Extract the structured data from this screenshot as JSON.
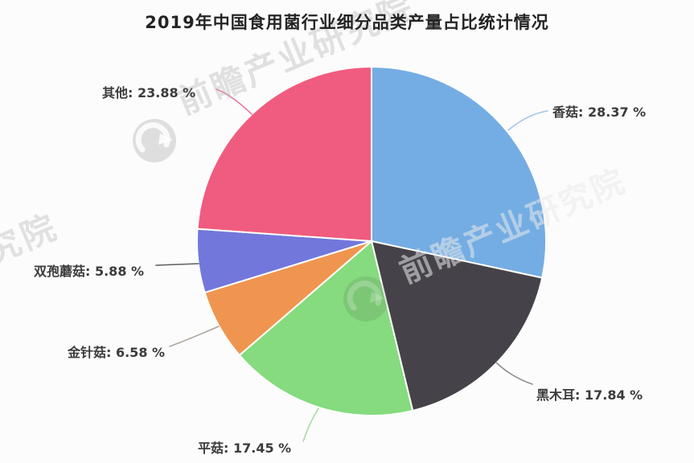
{
  "title": "2019年中国食用菌行业细分品类产量占比统计情况",
  "watermark": {
    "brand_text": "前瞻产业研究院",
    "partial_text": "研究院"
  },
  "chart_data": {
    "type": "pie",
    "title": "2019年中国食用菌行业细分品类产量占比统计情况",
    "unit": "%",
    "start_angle_deg": 0,
    "direction": "clockwise",
    "legend_position": "none",
    "slices": [
      {
        "name": "香菇",
        "value": 28.37,
        "label": "香菇: 28.37 %",
        "color": "#74ADE3",
        "leader_color": "#A3C6E8"
      },
      {
        "name": "黑木耳",
        "value": 17.84,
        "label": "黑木耳: 17.84 %",
        "color": "#454349",
        "leader_color": "#8F8F8F"
      },
      {
        "name": "平菇",
        "value": 17.45,
        "label": "平菇: 17.45 %",
        "color": "#85DB7E",
        "leader_color": "#A9DCA4"
      },
      {
        "name": "金针菇",
        "value": 6.58,
        "label": "金针菇: 6.58 %",
        "color": "#F0954F",
        "leader_color": "#ABA49C"
      },
      {
        "name": "双孢蘑菇",
        "value": 5.88,
        "label": "双孢蘑菇: 5.88 %",
        "color": "#7277DB",
        "leader_color": "#5F5F5F"
      },
      {
        "name": "其他",
        "value": 23.88,
        "label": "其他: 23.88 %",
        "color": "#F05C7F",
        "leader_color": "#E8799B"
      }
    ]
  }
}
